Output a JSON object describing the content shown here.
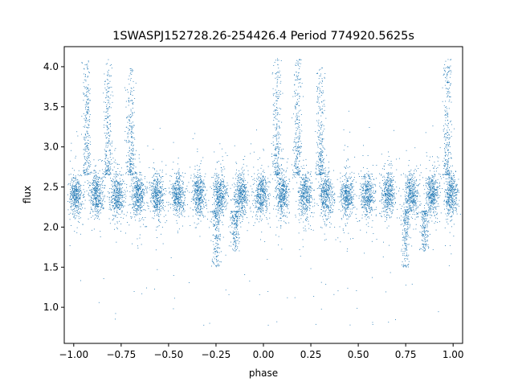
{
  "chart_data": {
    "type": "scatter",
    "title": "1SWASPJ152728.26-254426.4 Period 774920.5625s",
    "xlabel": "phase",
    "ylabel": "flux",
    "xlim": [
      -1.05,
      1.05
    ],
    "ylim": [
      0.55,
      4.25
    ],
    "xticks": [
      -1.0,
      -0.75,
      -0.5,
      -0.25,
      0.0,
      0.25,
      0.5,
      0.75,
      1.0
    ],
    "xtick_labels": [
      "−1.00",
      "−0.75",
      "−0.50",
      "−0.25",
      "0.00",
      "0.25",
      "0.50",
      "0.75",
      "1.00"
    ],
    "yticks": [
      1.0,
      1.5,
      2.0,
      2.5,
      3.0,
      3.5,
      4.0
    ],
    "ytick_labels": [
      "1.0",
      "1.5",
      "2.0",
      "2.5",
      "3.0",
      "3.5",
      "4.0"
    ],
    "grid": false,
    "marker_color": "#1f77b4",
    "baseline_flux": 2.4,
    "observation_clusters_phase": [
      -0.99,
      -0.88,
      -0.77,
      -0.66,
      -0.56,
      -0.45,
      -0.34,
      -0.23,
      -0.12,
      -0.01,
      0.1,
      0.22,
      0.33,
      0.44,
      0.55,
      0.66,
      0.78,
      0.89,
      0.99
    ],
    "flares": [
      {
        "phase": -0.93,
        "flux_max": 4.1
      },
      {
        "phase": -0.82,
        "flux_max": 4.1
      },
      {
        "phase": -0.7,
        "flux_max": 4.0
      },
      {
        "phase": 0.07,
        "flux_max": 4.1
      },
      {
        "phase": 0.18,
        "flux_max": 4.1
      },
      {
        "phase": 0.3,
        "flux_max": 4.0
      },
      {
        "phase": 0.97,
        "flux_max": 4.1
      }
    ],
    "dips": [
      {
        "phase": -0.25,
        "flux_min": 1.5
      },
      {
        "phase": -0.15,
        "flux_min": 1.7
      },
      {
        "phase": 0.75,
        "flux_min": 1.5
      },
      {
        "phase": 0.85,
        "flux_min": 1.7
      }
    ]
  }
}
